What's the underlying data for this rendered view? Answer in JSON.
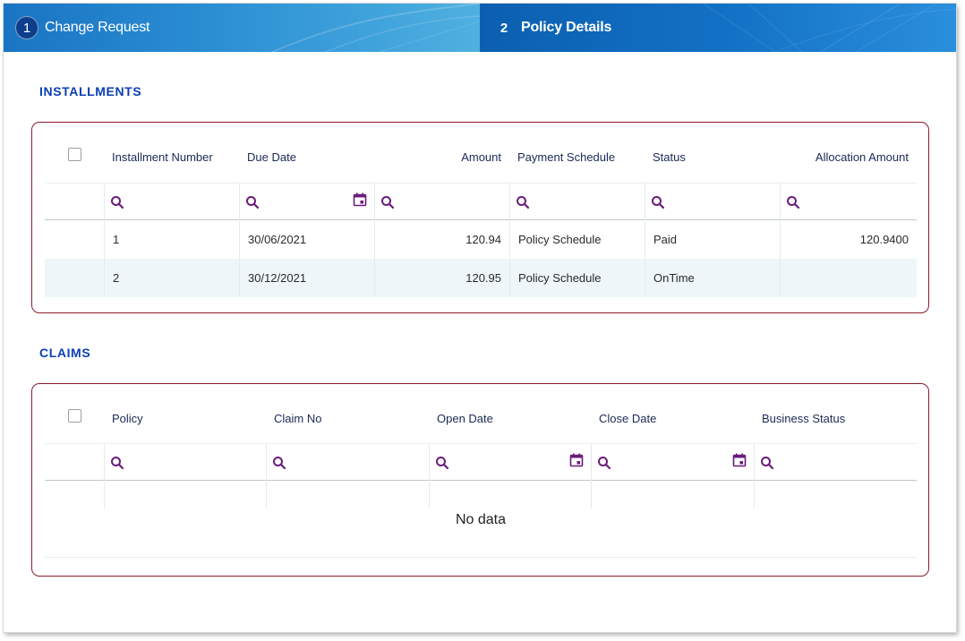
{
  "wizard": {
    "steps": [
      {
        "number": "1",
        "label": "Change Request"
      },
      {
        "number": "2",
        "label": "Policy Details"
      }
    ]
  },
  "installments": {
    "title": "INSTALLMENTS",
    "columns": [
      "Installment Number",
      "Due Date",
      "Amount",
      "Payment Schedule",
      "Status",
      "Allocation Amount"
    ],
    "rows": [
      {
        "number": "1",
        "due_date": "30/06/2021",
        "amount": "120.94",
        "schedule": "Policy Schedule",
        "status": "Paid",
        "allocation": "120.9400"
      },
      {
        "number": "2",
        "due_date": "30/12/2021",
        "amount": "120.95",
        "schedule": "Policy Schedule",
        "status": "OnTime",
        "allocation": ""
      }
    ]
  },
  "claims": {
    "title": "CLAIMS",
    "columns": [
      "Policy",
      "Claim No",
      "Open Date",
      "Close Date",
      "Business Status"
    ],
    "empty_text": "No data"
  },
  "colors": {
    "section_title": "#0b3fb3",
    "panel_border": "#8b1c2c",
    "filter_icon": "#6a1b7a",
    "step_active": "#0c5fb0"
  },
  "icons": {
    "filter": "search-icon",
    "date": "calendar-icon"
  }
}
